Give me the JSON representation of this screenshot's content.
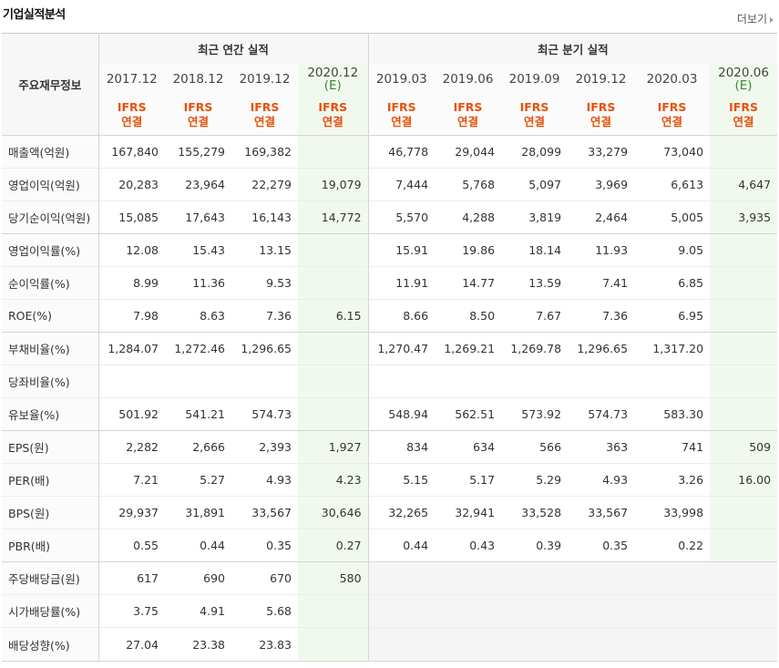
{
  "header": {
    "title": "기업실적분석",
    "more_label": "더보기"
  },
  "table": {
    "corner_label": "주요재무정보",
    "annual_group": "최근 연간 실적",
    "quarter_group": "최근 분기 실적",
    "periods": [
      {
        "label": "2017.12",
        "est": ""
      },
      {
        "label": "2018.12",
        "est": ""
      },
      {
        "label": "2019.12",
        "est": ""
      },
      {
        "label": "2020.12",
        "est": "(E)"
      },
      {
        "label": "2019.03",
        "est": ""
      },
      {
        "label": "2019.06",
        "est": ""
      },
      {
        "label": "2019.09",
        "est": ""
      },
      {
        "label": "2019.12",
        "est": ""
      },
      {
        "label": "2020.03",
        "est": ""
      },
      {
        "label": "2020.06",
        "est": "(E)"
      }
    ],
    "ifrs_top": "IFRS",
    "ifrs_bottom": "연결",
    "rows": [
      {
        "label": "매출액(억원)",
        "values": [
          "167,840",
          "155,279",
          "169,382",
          "",
          "46,778",
          "29,044",
          "28,099",
          "33,279",
          "73,040",
          ""
        ]
      },
      {
        "label": "영업이익(억원)",
        "values": [
          "20,283",
          "23,964",
          "22,279",
          "19,079",
          "7,444",
          "5,768",
          "5,097",
          "3,969",
          "6,613",
          "4,647"
        ]
      },
      {
        "label": "당기순이익(억원)",
        "values": [
          "15,085",
          "17,643",
          "16,143",
          "14,772",
          "5,570",
          "4,288",
          "3,819",
          "2,464",
          "5,005",
          "3,935"
        ]
      },
      {
        "label": "영업이익률(%)",
        "values": [
          "12.08",
          "15.43",
          "13.15",
          "",
          "15.91",
          "19.86",
          "18.14",
          "11.93",
          "9.05",
          ""
        ]
      },
      {
        "label": "순이익률(%)",
        "values": [
          "8.99",
          "11.36",
          "9.53",
          "",
          "11.91",
          "14.77",
          "13.59",
          "7.41",
          "6.85",
          ""
        ]
      },
      {
        "label": "ROE(%)",
        "values": [
          "7.98",
          "8.63",
          "7.36",
          "6.15",
          "8.66",
          "8.50",
          "7.67",
          "7.36",
          "6.95",
          ""
        ]
      },
      {
        "label": "부채비율(%)",
        "values": [
          "1,284.07",
          "1,272.46",
          "1,296.65",
          "",
          "1,270.47",
          "1,269.21",
          "1,269.78",
          "1,296.65",
          "1,317.20",
          ""
        ]
      },
      {
        "label": "당좌비율(%)",
        "values": [
          "",
          "",
          "",
          "",
          "",
          "",
          "",
          "",
          "",
          ""
        ]
      },
      {
        "label": "유보율(%)",
        "values": [
          "501.92",
          "541.21",
          "574.73",
          "",
          "548.94",
          "562.51",
          "573.92",
          "574.73",
          "583.30",
          ""
        ]
      },
      {
        "label": "EPS(원)",
        "values": [
          "2,282",
          "2,666",
          "2,393",
          "1,927",
          "834",
          "634",
          "566",
          "363",
          "741",
          "509"
        ]
      },
      {
        "label": "PER(배)",
        "values": [
          "7.21",
          "5.27",
          "4.93",
          "4.23",
          "5.15",
          "5.17",
          "5.29",
          "4.93",
          "3.26",
          "16.00"
        ]
      },
      {
        "label": "BPS(원)",
        "values": [
          "29,937",
          "31,891",
          "33,567",
          "30,646",
          "32,265",
          "32,941",
          "33,528",
          "33,567",
          "33,998",
          ""
        ]
      },
      {
        "label": "PBR(배)",
        "values": [
          "0.55",
          "0.44",
          "0.35",
          "0.27",
          "0.44",
          "0.43",
          "0.39",
          "0.35",
          "0.22",
          ""
        ]
      },
      {
        "label": "주당배당금(원)",
        "values": [
          "617",
          "690",
          "670",
          "580",
          "",
          "",
          "",
          "",
          "",
          ""
        ]
      },
      {
        "label": "시가배당률(%)",
        "values": [
          "3.75",
          "4.91",
          "5.68",
          "",
          "",
          "",
          "",
          "",
          "",
          ""
        ]
      },
      {
        "label": "배당성향(%)",
        "values": [
          "27.04",
          "23.38",
          "23.83",
          "",
          "",
          "",
          "",
          "",
          "",
          ""
        ]
      }
    ],
    "group_starts": [
      0,
      3,
      6,
      9,
      13
    ],
    "blank_quarter_rows": [
      13,
      14,
      15
    ]
  }
}
